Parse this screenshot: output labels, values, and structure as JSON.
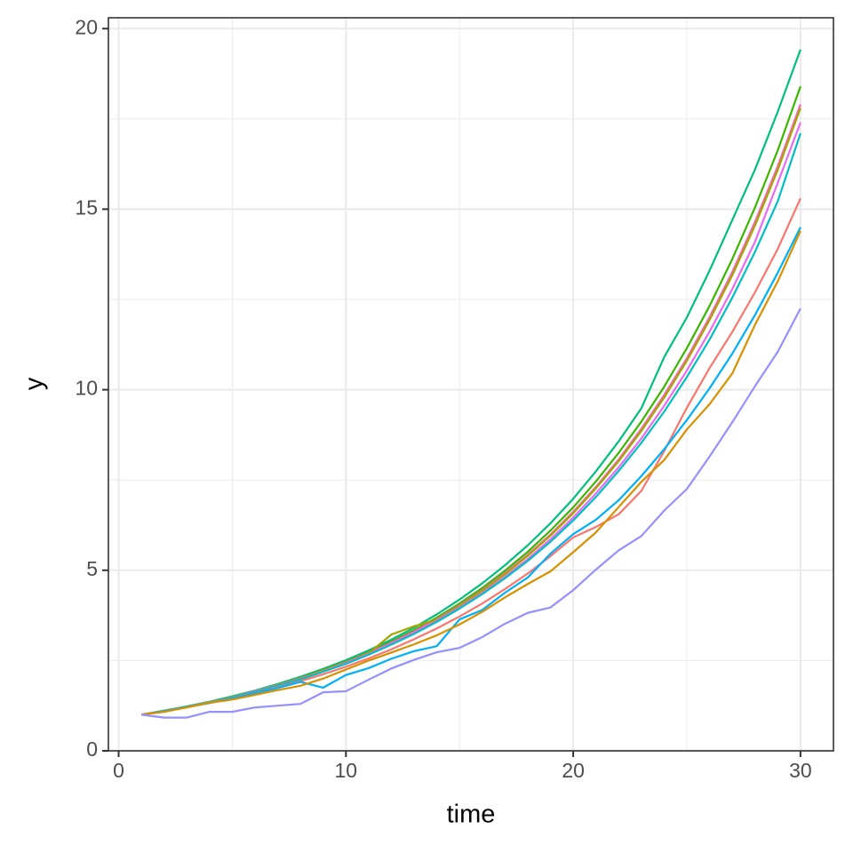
{
  "chart_data": {
    "type": "line",
    "x_label": "time",
    "y_label": "y",
    "x": [
      1,
      2,
      3,
      4,
      5,
      6,
      7,
      8,
      9,
      10,
      11,
      12,
      13,
      14,
      15,
      16,
      17,
      18,
      19,
      20,
      21,
      22,
      23,
      24,
      25,
      26,
      27,
      28,
      29,
      30
    ],
    "series": [
      {
        "color": "#00BF7D",
        "values": [
          1,
          1.11,
          1.23,
          1.36,
          1.51,
          1.67,
          1.85,
          2.05,
          2.27,
          2.51,
          2.78,
          3.08,
          3.41,
          3.78,
          4.19,
          4.64,
          5.14,
          5.69,
          6.3,
          6.98,
          7.74,
          8.57,
          9.49,
          10.9,
          12.0,
          13.3,
          14.7,
          16.1,
          17.7,
          19.42
        ]
      },
      {
        "color": "#39B600",
        "values": [
          1,
          1.11,
          1.22,
          1.35,
          1.5,
          1.65,
          1.83,
          2.02,
          2.24,
          2.47,
          2.73,
          3.02,
          3.34,
          3.69,
          4.08,
          4.51,
          4.99,
          5.51,
          6.1,
          6.74,
          7.46,
          8.25,
          9.12,
          10.08,
          11.15,
          12.32,
          13.62,
          15.05,
          16.63,
          18.4
        ]
      },
      {
        "color": "#FF62BC",
        "values": [
          1,
          1.1,
          1.22,
          1.35,
          1.49,
          1.65,
          1.82,
          2.01,
          2.22,
          2.45,
          2.71,
          2.99,
          3.3,
          3.65,
          4.03,
          4.45,
          4.92,
          5.43,
          5.99,
          6.62,
          7.31,
          8.07,
          8.92,
          9.85,
          10.87,
          12.01,
          13.26,
          14.65,
          16.19,
          17.9
        ]
      },
      {
        "color": "#A3A500",
        "values": [
          1,
          1.1,
          1.22,
          1.35,
          1.49,
          1.64,
          1.82,
          2.0,
          2.22,
          2.44,
          2.7,
          3.22,
          3.45,
          3.63,
          4.01,
          4.43,
          4.89,
          5.4,
          5.96,
          6.58,
          7.27,
          8.02,
          8.86,
          9.78,
          10.8,
          11.93,
          13.17,
          14.55,
          16.09,
          17.8
        ]
      },
      {
        "color": "#E76BF3",
        "values": [
          1,
          1.1,
          1.22,
          1.34,
          1.48,
          1.64,
          1.81,
          1.99,
          2.2,
          2.43,
          2.68,
          2.96,
          3.26,
          3.6,
          3.97,
          4.37,
          4.82,
          5.31,
          5.86,
          6.46,
          7.13,
          7.85,
          8.65,
          9.55,
          10.53,
          11.61,
          12.79,
          14.1,
          15.73,
          17.4
        ]
      },
      {
        "color": "#00BFC4",
        "values": [
          1,
          1.1,
          1.22,
          1.34,
          1.48,
          1.63,
          1.8,
          1.98,
          2.19,
          2.41,
          2.66,
          2.94,
          3.24,
          3.57,
          3.94,
          4.34,
          4.78,
          5.26,
          5.79,
          6.38,
          7.03,
          7.75,
          8.53,
          9.39,
          10.35,
          11.39,
          12.55,
          13.82,
          15.22,
          17.1
        ]
      },
      {
        "color": "#F8766D",
        "values": [
          1,
          1.1,
          1.21,
          1.33,
          1.46,
          1.6,
          1.76,
          1.93,
          2.12,
          2.33,
          2.56,
          2.81,
          3.09,
          3.39,
          3.72,
          4.08,
          4.48,
          4.91,
          5.39,
          5.91,
          6.2,
          6.55,
          7.2,
          8.3,
          9.5,
          10.6,
          11.6,
          12.7,
          13.9,
          15.3
        ]
      },
      {
        "color": "#00B0F6",
        "values": [
          1,
          1.1,
          1.21,
          1.32,
          1.45,
          1.59,
          1.74,
          1.91,
          1.75,
          2.1,
          2.29,
          2.55,
          2.76,
          2.9,
          3.64,
          3.9,
          4.38,
          4.8,
          5.46,
          6.0,
          6.4,
          6.94,
          7.61,
          8.35,
          9.16,
          10.04,
          11.0,
          12.07,
          13.24,
          14.5
        ]
      },
      {
        "color": "#D89000",
        "values": [
          1,
          1.08,
          1.2,
          1.33,
          1.42,
          1.55,
          1.68,
          1.8,
          2.0,
          2.25,
          2.5,
          2.72,
          2.95,
          3.2,
          3.5,
          3.85,
          4.25,
          4.62,
          4.97,
          5.5,
          6.05,
          6.75,
          7.45,
          8.05,
          8.9,
          9.6,
          10.45,
          11.8,
          13.0,
          14.4
        ]
      },
      {
        "color": "#9590FF",
        "values": [
          1,
          0.92,
          0.92,
          1.08,
          1.08,
          1.2,
          1.25,
          1.3,
          1.62,
          1.65,
          1.97,
          2.28,
          2.52,
          2.73,
          2.85,
          3.15,
          3.52,
          3.82,
          3.97,
          4.45,
          5.02,
          5.55,
          5.95,
          6.65,
          7.25,
          8.15,
          9.1,
          10.1,
          11.05,
          12.25
        ]
      }
    ],
    "xlim": [
      -0.45,
      31.45
    ],
    "xticks": [
      0,
      10,
      20,
      30
    ],
    "ylim": [
      0,
      20.3
    ],
    "yticks": [
      0,
      5,
      10,
      15,
      20
    ],
    "grid": true
  }
}
